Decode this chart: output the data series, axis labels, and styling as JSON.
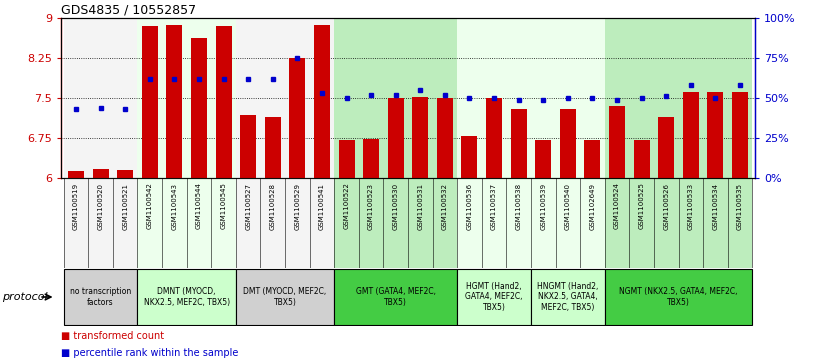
{
  "title": "GDS4835 / 10552857",
  "samples": [
    "GSM1100519",
    "GSM1100520",
    "GSM1100521",
    "GSM1100542",
    "GSM1100543",
    "GSM1100544",
    "GSM1100545",
    "GSM1100527",
    "GSM1100528",
    "GSM1100529",
    "GSM1100541",
    "GSM1100522",
    "GSM1100523",
    "GSM1100530",
    "GSM1100531",
    "GSM1100532",
    "GSM1100536",
    "GSM1100537",
    "GSM1100538",
    "GSM1100539",
    "GSM1100540",
    "GSM1102649",
    "GSM1100524",
    "GSM1100525",
    "GSM1100526",
    "GSM1100533",
    "GSM1100534",
    "GSM1100535"
  ],
  "bar_values": [
    6.13,
    6.17,
    6.15,
    8.85,
    8.87,
    8.62,
    8.85,
    7.18,
    7.15,
    8.25,
    8.87,
    6.72,
    6.73,
    7.5,
    7.52,
    7.5,
    6.78,
    7.5,
    7.3,
    6.72,
    7.3,
    6.72,
    7.35,
    6.72,
    7.15,
    7.62,
    7.62,
    7.62
  ],
  "dot_values_pct": [
    43,
    44,
    43,
    62,
    62,
    62,
    62,
    62,
    62,
    75,
    53,
    50,
    52,
    52,
    55,
    52,
    50,
    50,
    49,
    49,
    50,
    50,
    49,
    50,
    51,
    58,
    50,
    58
  ],
  "groups": [
    {
      "label": "no transcription\nfactors",
      "start": 0,
      "end": 3,
      "color": "#d0d0d0"
    },
    {
      "label": "DMNT (MYOCD,\nNKX2.5, MEF2C, TBX5)",
      "start": 3,
      "end": 7,
      "color": "#ccffcc"
    },
    {
      "label": "DMT (MYOCD, MEF2C,\nTBX5)",
      "start": 7,
      "end": 11,
      "color": "#d0d0d0"
    },
    {
      "label": "GMT (GATA4, MEF2C,\nTBX5)",
      "start": 11,
      "end": 16,
      "color": "#44cc44"
    },
    {
      "label": "HGMT (Hand2,\nGATA4, MEF2C,\nTBX5)",
      "start": 16,
      "end": 19,
      "color": "#ccffcc"
    },
    {
      "label": "HNGMT (Hand2,\nNKX2.5, GATA4,\nMEF2C, TBX5)",
      "start": 19,
      "end": 22,
      "color": "#ccffcc"
    },
    {
      "label": "NGMT (NKX2.5, GATA4, MEF2C,\nTBX5)",
      "start": 22,
      "end": 28,
      "color": "#44cc44"
    }
  ],
  "col_bg_colors": [
    "#e0e0e0",
    "#e0e0e0",
    "#e0e0e0",
    "#ccffcc",
    "#ccffcc",
    "#ccffcc",
    "#ccffcc",
    "#e0e0e0",
    "#e0e0e0",
    "#e0e0e0",
    "#e0e0e0",
    "#44cc44",
    "#44cc44",
    "#44cc44",
    "#44cc44",
    "#44cc44",
    "#ccffcc",
    "#ccffcc",
    "#ccffcc",
    "#ccffcc",
    "#ccffcc",
    "#ccffcc",
    "#44cc44",
    "#44cc44",
    "#44cc44",
    "#44cc44",
    "#44cc44",
    "#44cc44"
  ],
  "ylim": [
    6.0,
    9.0
  ],
  "y2lim": [
    0,
    100
  ],
  "yticks": [
    6.0,
    6.75,
    7.5,
    8.25,
    9.0
  ],
  "ytick_labels": [
    "6",
    "6.75",
    "7.5",
    "8.25",
    "9"
  ],
  "y2ticks": [
    0,
    25,
    50,
    75,
    100
  ],
  "y2tick_labels": [
    "0%",
    "25%",
    "50%",
    "75%",
    "100%"
  ],
  "bar_color": "#cc0000",
  "dot_color": "#0000cc",
  "background_color": "#ffffff",
  "protocol_label": "protocol",
  "legend1": "transformed count",
  "legend2": "percentile rank within the sample"
}
